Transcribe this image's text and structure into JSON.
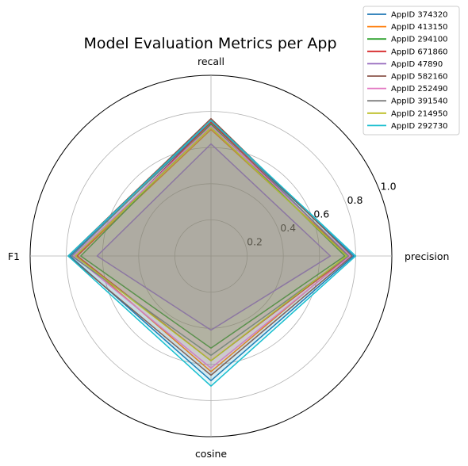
{
  "chart_data": {
    "type": "radar",
    "title": "Model Evaluation Metrics per App",
    "axes": [
      "precision",
      "recall",
      "F1",
      "cosine"
    ],
    "rlim": [
      0,
      1.0
    ],
    "radial_ticks": [
      0.2,
      0.4,
      0.6,
      0.8,
      1.0
    ],
    "radial_tick_labels": [
      "0.2",
      "0.4",
      "0.6",
      "0.8",
      "1.0"
    ],
    "grid": true,
    "legend_position": "top-right",
    "series": [
      {
        "name": "AppID 374320",
        "color": "#1f77b4",
        "values": [
          0.79,
          0.74,
          0.78,
          0.69
        ]
      },
      {
        "name": "AppID 413150",
        "color": "#ff7f0e",
        "values": [
          0.76,
          0.7,
          0.74,
          0.64
        ]
      },
      {
        "name": "AppID 294100",
        "color": "#2ca02c",
        "values": [
          0.74,
          0.73,
          0.72,
          0.51
        ]
      },
      {
        "name": "AppID 671860",
        "color": "#d62728",
        "values": [
          0.76,
          0.74,
          0.74,
          0.58
        ]
      },
      {
        "name": "AppID 47890",
        "color": "#9467bd",
        "values": [
          0.66,
          0.62,
          0.63,
          0.41
        ]
      },
      {
        "name": "AppID 582160",
        "color": "#8c564b",
        "values": [
          0.78,
          0.76,
          0.79,
          0.66
        ]
      },
      {
        "name": "AppID 252490",
        "color": "#e377c2",
        "values": [
          0.77,
          0.72,
          0.76,
          0.62
        ]
      },
      {
        "name": "AppID 391540",
        "color": "#7f7f7f",
        "values": [
          0.76,
          0.75,
          0.77,
          0.55
        ]
      },
      {
        "name": "AppID 214950",
        "color": "#bcbd22",
        "values": [
          0.75,
          0.71,
          0.75,
          0.58
        ]
      },
      {
        "name": "AppID 292730",
        "color": "#17becf",
        "values": [
          0.8,
          0.75,
          0.79,
          0.72
        ]
      }
    ]
  }
}
